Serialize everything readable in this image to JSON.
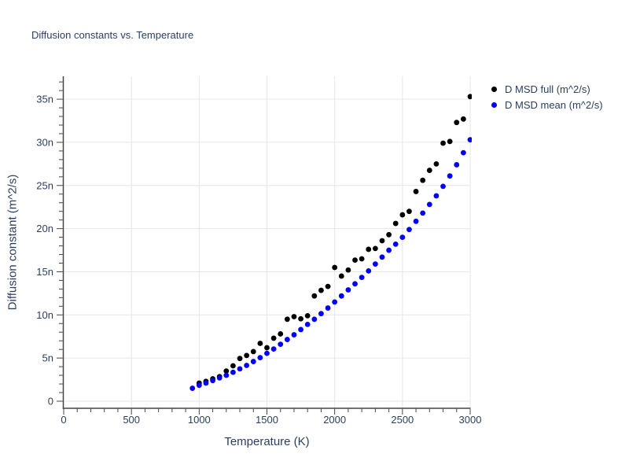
{
  "title": "Diffusion constants vs. Temperature",
  "colors": {
    "background": "#ffffff",
    "title_text": "#2a3f5f",
    "tick_text": "#2a3f5f",
    "axis_line": "#444444",
    "grid_line": "#e6e6e6",
    "series_full": "#000000",
    "series_mean": "#0000ff"
  },
  "legend": {
    "items": [
      {
        "label": "D MSD full (m^2/s)",
        "color": "#000000"
      },
      {
        "label": "D MSD mean (m^2/s)",
        "color": "#0000ff"
      }
    ]
  },
  "chart_data": {
    "type": "scatter",
    "title": "Diffusion constants vs. Temperature",
    "xlabel": "Temperature (K)",
    "ylabel": "Diffusion constant (m^2/s)",
    "xlim": [
      0,
      3000
    ],
    "ylim_nano": [
      -0.8,
      37.8
    ],
    "x_major_ticks": [
      0,
      500,
      1000,
      1500,
      2000,
      2500,
      3000
    ],
    "x_tick_labels": [
      "0",
      "500",
      "1000",
      "1500",
      "2000",
      "2500",
      "3000"
    ],
    "x_minor_tick_step": 100,
    "y_major_ticks_nano": [
      0,
      5,
      10,
      15,
      20,
      25,
      30,
      35
    ],
    "y_tick_labels": [
      "0",
      "5n",
      "10n",
      "15n",
      "20n",
      "25n",
      "30n",
      "35n"
    ],
    "y_minor_tick_step_nano": 1,
    "grid": "major-only",
    "legend_position": "top-right-outside",
    "marker": "filled-circle",
    "y_unit_note": "n = nano (1e-9 m^2/s)",
    "series": [
      {
        "name": "D MSD full (m^2/s)",
        "key": "full",
        "color": "#000000",
        "x_K": [
          1000,
          1050,
          1100,
          1150,
          1200,
          1250,
          1300,
          1350,
          1400,
          1450,
          1500,
          1550,
          1600,
          1650,
          1700,
          1750,
          1800,
          1850,
          1900,
          1950,
          2000,
          2050,
          2100,
          2150,
          2200,
          2250,
          2300,
          2350,
          2400,
          2450,
          2500,
          2550,
          2600,
          2650,
          2700,
          2750,
          2800,
          2850,
          2900,
          2950,
          3000
        ],
        "y_nano": [
          2.1,
          2.3,
          2.6,
          2.85,
          3.5,
          4.1,
          4.95,
          5.3,
          5.75,
          6.7,
          6.2,
          7.3,
          7.8,
          9.5,
          9.8,
          9.55,
          9.9,
          12.2,
          12.85,
          13.3,
          15.5,
          14.5,
          15.2,
          16.35,
          16.5,
          17.6,
          17.7,
          18.6,
          19.3,
          20.6,
          21.6,
          22.0,
          24.3,
          25.6,
          26.75,
          27.5,
          29.9,
          30.1,
          32.3,
          32.7,
          35.3
        ]
      },
      {
        "name": "D MSD mean (m^2/s)",
        "key": "mean",
        "color": "#0000ff",
        "x_K": [
          950,
          1000,
          1050,
          1100,
          1150,
          1200,
          1250,
          1300,
          1350,
          1400,
          1450,
          1500,
          1550,
          1600,
          1650,
          1700,
          1750,
          1800,
          1850,
          1900,
          1950,
          2000,
          2050,
          2100,
          2150,
          2200,
          2250,
          2300,
          2350,
          2400,
          2450,
          2500,
          2550,
          2600,
          2650,
          2700,
          2750,
          2800,
          2850,
          2900,
          2950,
          3000
        ],
        "y_nano": [
          1.5,
          1.85,
          2.1,
          2.4,
          2.7,
          3.0,
          3.35,
          3.75,
          4.15,
          4.6,
          5.05,
          5.55,
          6.05,
          6.6,
          7.15,
          7.7,
          8.3,
          8.9,
          9.5,
          10.15,
          10.8,
          11.5,
          12.2,
          12.9,
          13.6,
          14.35,
          15.1,
          15.9,
          16.7,
          17.5,
          18.2,
          19.0,
          19.9,
          20.85,
          21.8,
          22.8,
          23.8,
          24.9,
          26.1,
          27.4,
          28.8,
          30.3
        ]
      }
    ]
  }
}
